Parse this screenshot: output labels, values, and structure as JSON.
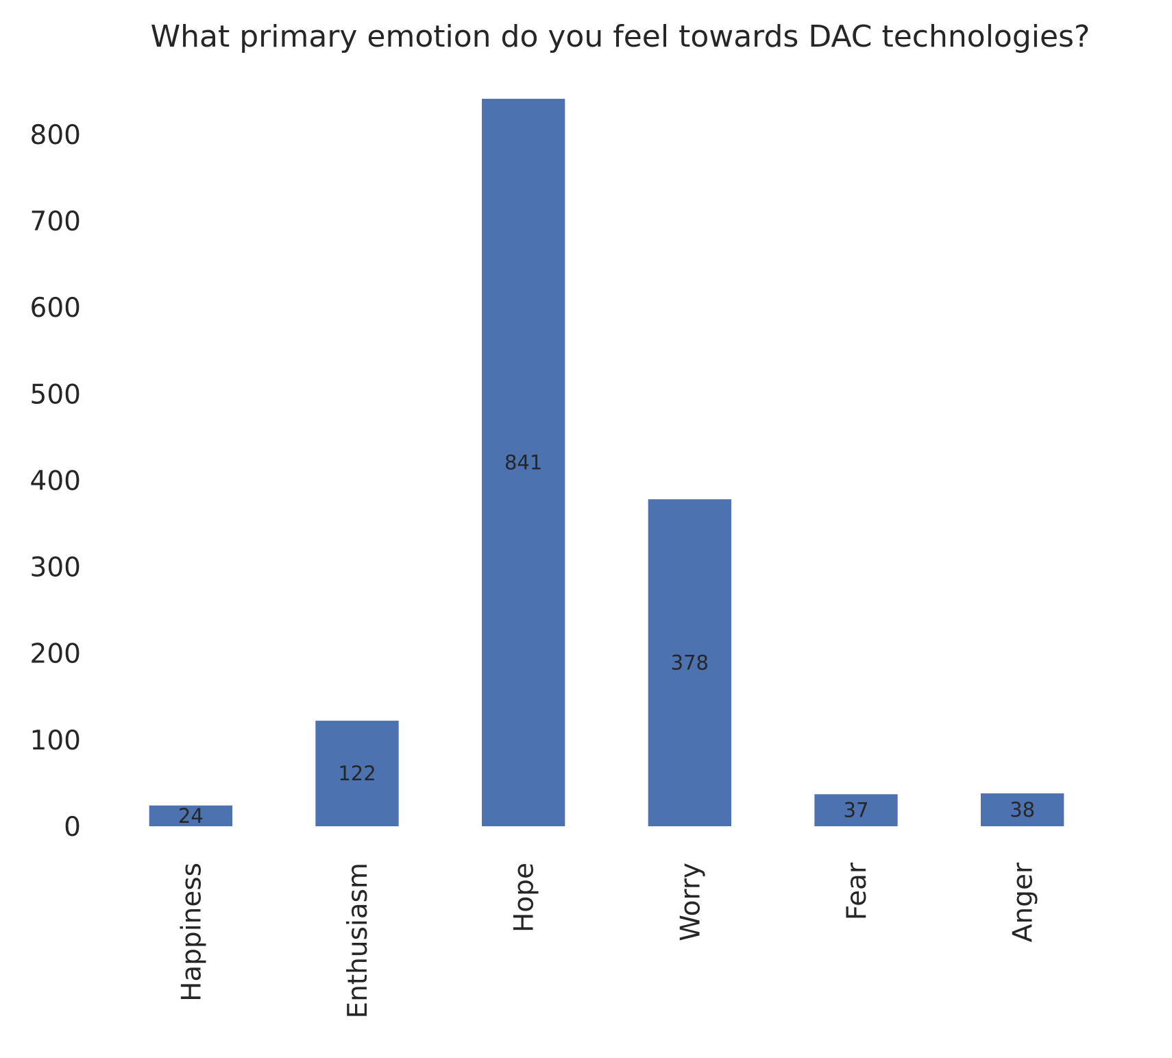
{
  "chart_data": {
    "type": "bar",
    "title": "What primary emotion do you feel towards DAC technologies?",
    "xlabel": "",
    "ylabel": "",
    "categories": [
      "Happiness",
      "Enthusiasm",
      "Hope",
      "Worry",
      "Fear",
      "Anger"
    ],
    "values": [
      24,
      122,
      841,
      378,
      37,
      38
    ],
    "data_labels": [
      "24",
      "122",
      "841",
      "378",
      "37",
      "38"
    ],
    "yticks": [
      0,
      100,
      200,
      300,
      400,
      500,
      600,
      700,
      800
    ],
    "ytick_labels": [
      "0",
      "100",
      "200",
      "300",
      "400",
      "500",
      "600",
      "700",
      "800"
    ],
    "ylim": [
      0,
      883
    ],
    "grid": false,
    "legend": "none",
    "bar_color": "#4c72b0"
  }
}
